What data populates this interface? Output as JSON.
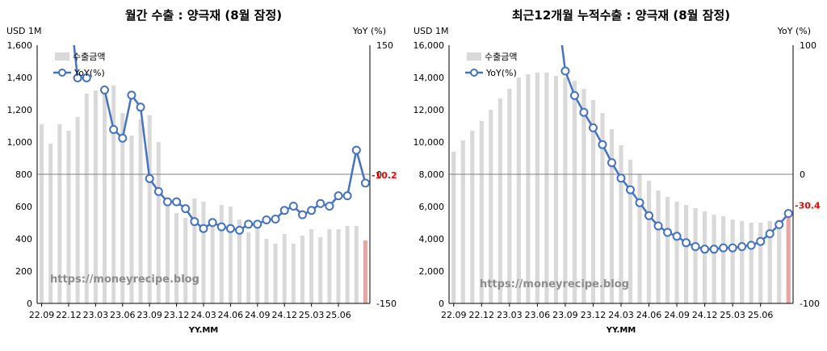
{
  "watermark": "https://moneyrecipe.blog",
  "chart_data": [
    {
      "type": "bar",
      "title": "월간 수출 : 양극재 (8월 잠정)",
      "ylabel_left": "USD 1M",
      "ylabel_right": "YoY (%)",
      "xlabel": "YY.MM",
      "ylim_left": [
        0,
        1600
      ],
      "ylim_right": [
        -150,
        150
      ],
      "yticks_left": [
        "0",
        "200",
        "400",
        "600",
        "800",
        "1,000",
        "1,200",
        "1,400",
        "1,600"
      ],
      "yticks_right": [
        "-150",
        "0",
        "150"
      ],
      "yticks_right_values": [
        -150,
        0,
        150
      ],
      "xticks": [
        "22.09",
        "22.12",
        "23.03",
        "23.06",
        "23.09",
        "23.12",
        "24.03",
        "24.06",
        "24.09",
        "24.12",
        "25.03",
        "25.06"
      ],
      "legend": [
        "수출금액",
        "YoY(%)"
      ],
      "last_label": "-10.2",
      "highlight_last": true,
      "bar_color": "#d9d9d9",
      "highlight_color": "#e6a6a6",
      "line_color": "#4472c4",
      "bars": [
        1110,
        990,
        1110,
        1070,
        1155,
        1300,
        1320,
        1320,
        1350,
        1180,
        1040,
        1140,
        1165,
        1000,
        650,
        560,
        530,
        650,
        630,
        520,
        610,
        600,
        520,
        440,
        470,
        400,
        370,
        430,
        370,
        420,
        460,
        410,
        460,
        460,
        480,
        480,
        390
      ],
      "yoy": [
        null,
        null,
        null,
        null,
        112,
        112,
        null,
        98,
        52,
        42,
        92,
        78,
        -5,
        -20,
        -32,
        -32,
        -40,
        -55,
        -63,
        -56,
        -61,
        -63,
        -65,
        -58,
        -58,
        -53,
        -52,
        -42,
        -37,
        -47,
        -42,
        -34,
        -37,
        -25,
        -25,
        28,
        -10.2
      ]
    },
    {
      "type": "bar",
      "title": "최근12개월 누적수출 : 양극재 (8월 잠정)",
      "ylabel_left": "USD 1M",
      "ylabel_right": "YoY (%)",
      "xlabel": "YY.MM",
      "ylim_left": [
        0,
        16000
      ],
      "ylim_right": [
        -100,
        100
      ],
      "yticks_left": [
        "0",
        "2,000",
        "4,000",
        "6,000",
        "8,000",
        "10,000",
        "12,000",
        "14,000",
        "16,000"
      ],
      "yticks_right": [
        "-100",
        "0",
        "100"
      ],
      "yticks_right_values": [
        -100,
        0,
        100
      ],
      "xticks": [
        "22.09",
        "22.12",
        "23.03",
        "23.06",
        "23.09",
        "23.12",
        "24.03",
        "24.06",
        "24.09",
        "24.12",
        "25.03",
        "25.06"
      ],
      "legend": [
        "수출금액",
        "YoY(%)"
      ],
      "last_label": "-30.4",
      "highlight_last": true,
      "bar_color": "#d9d9d9",
      "highlight_color": "#e6a6a6",
      "line_color": "#4472c4",
      "bars": [
        9400,
        10100,
        10700,
        11300,
        12000,
        12700,
        13300,
        14000,
        14200,
        14300,
        14300,
        14100,
        14000,
        13800,
        13300,
        12600,
        11800,
        10800,
        9800,
        8900,
        8000,
        7600,
        7000,
        6600,
        6300,
        6100,
        5900,
        5700,
        5500,
        5400,
        5200,
        5100,
        5000,
        5000,
        5100,
        5200,
        5300
      ],
      "yoy": [
        null,
        null,
        null,
        null,
        null,
        null,
        null,
        null,
        null,
        null,
        null,
        null,
        80,
        61,
        48,
        36,
        23,
        9,
        -3,
        -12,
        -22,
        -32,
        -40,
        -45,
        -48,
        -53,
        -56,
        -58,
        -58,
        -57,
        -57,
        -56,
        -55,
        -52,
        -46,
        -39,
        -30.4
      ]
    }
  ]
}
